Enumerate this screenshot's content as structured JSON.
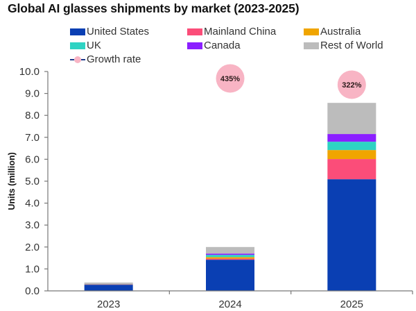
{
  "chart_data": {
    "type": "bar",
    "stacked": true,
    "title": "Global AI glasses shipments by market (2023-2025)",
    "xlabel": "",
    "ylabel": "Units (million)",
    "ylim": [
      0,
      10
    ],
    "yticks": [
      "0.0",
      "1.0",
      "2.0",
      "3.0",
      "4.0",
      "5.0",
      "6.0",
      "7.0",
      "8.0",
      "9.0",
      "10.0"
    ],
    "grid": false,
    "legend_position": "top",
    "categories": [
      "2023",
      "2024",
      "2025"
    ],
    "series": [
      {
        "name": "United States",
        "color": "#0a3fb3",
        "values": [
          0.28,
          1.42,
          5.09
        ]
      },
      {
        "name": "Mainland China",
        "color": "#fb4d79",
        "values": [
          0.01,
          0.05,
          0.92
        ]
      },
      {
        "name": "Australia",
        "color": "#f0a500",
        "values": [
          0.01,
          0.07,
          0.41
        ]
      },
      {
        "name": "UK",
        "color": "#2ed3c3",
        "values": [
          0.01,
          0.1,
          0.38
        ]
      },
      {
        "name": "Canada",
        "color": "#8b1fff",
        "values": [
          0.01,
          0.06,
          0.35
        ]
      },
      {
        "name": "Rest of World",
        "color": "#bcbcbc",
        "values": [
          0.06,
          0.3,
          1.42
        ]
      }
    ],
    "growth_rate": {
      "name": "Growth rate",
      "line_color": "#1f3a8a",
      "marker_color": "#f8b4c4",
      "categories": [
        "2024",
        "2025"
      ],
      "values": [
        435,
        322
      ],
      "labels": [
        "435%",
        "322%"
      ],
      "y2lim": [
        -3400,
        560
      ]
    }
  },
  "legend": [
    {
      "label": "United States",
      "color": "#0a3fb3"
    },
    {
      "label": "Mainland China",
      "color": "#fb4d79"
    },
    {
      "label": "Australia",
      "color": "#f0a500"
    },
    {
      "label": "UK",
      "color": "#2ed3c3"
    },
    {
      "label": "Canada",
      "color": "#8b1fff"
    },
    {
      "label": "Rest of World",
      "color": "#bcbcbc"
    },
    {
      "label": "Growth rate",
      "type": "line-marker"
    }
  ]
}
